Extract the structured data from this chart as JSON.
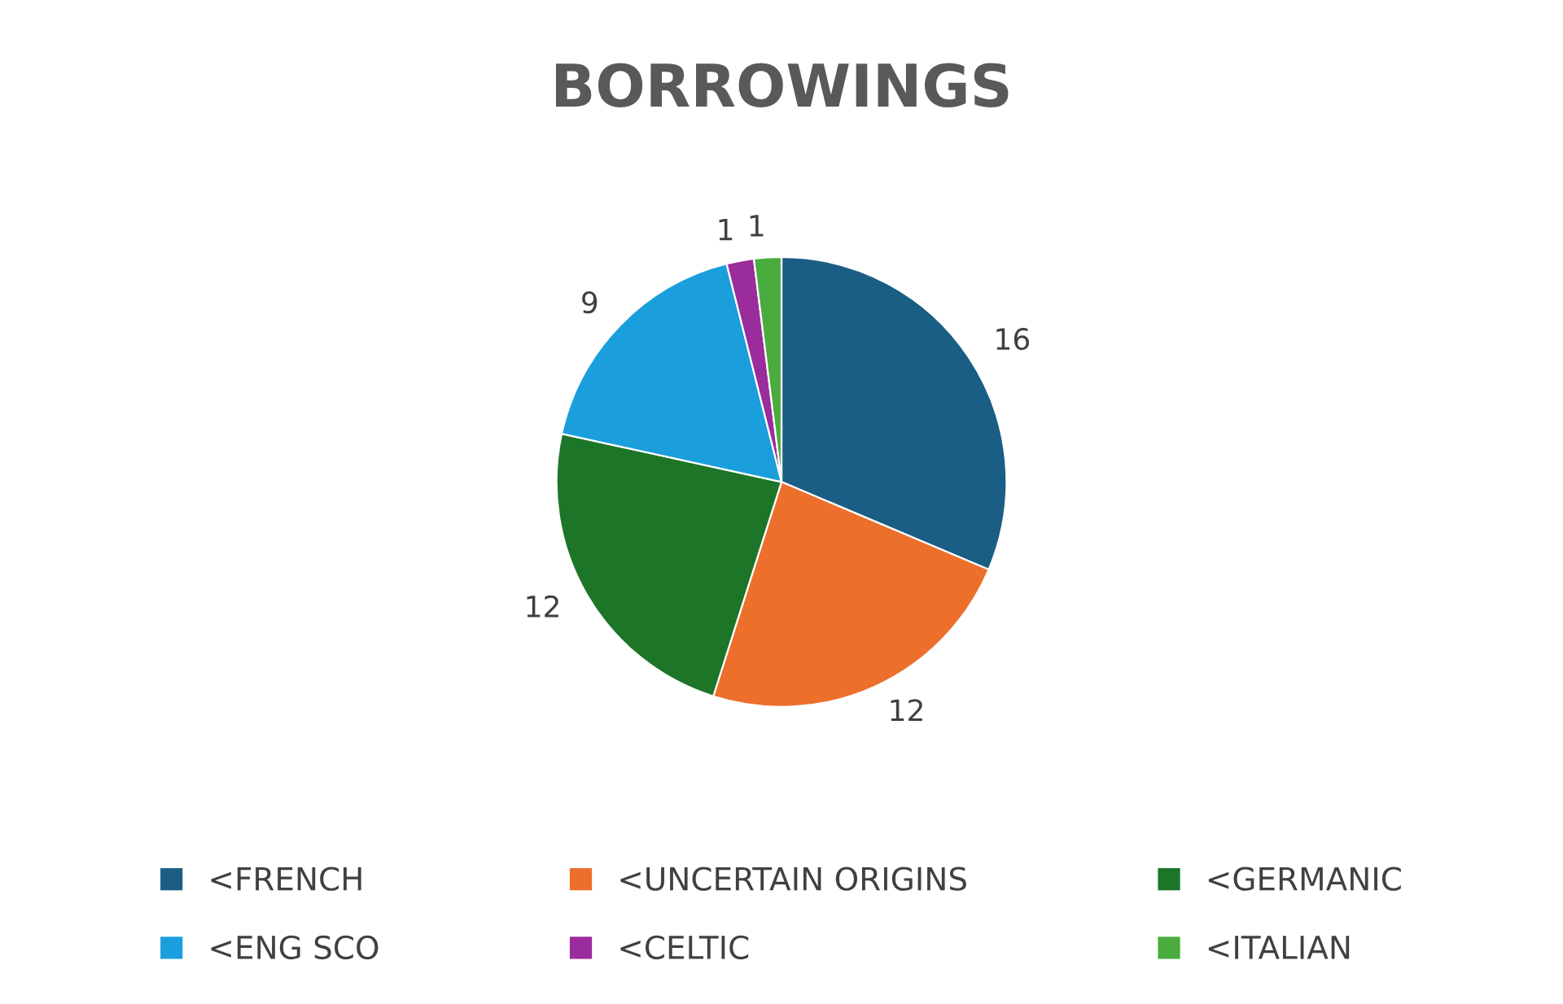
{
  "chart_data": {
    "type": "pie",
    "title": "BORROWINGS",
    "categories": [
      "<FRENCH",
      "<UNCERTAIN ORIGINS",
      "<GERMANIC",
      "<ENG SCO",
      "<CELTIC",
      "<ITALIAN"
    ],
    "values": [
      16,
      12,
      12,
      9,
      1,
      1
    ],
    "colors": [
      "#1b5e85",
      "#ec6f2c",
      "#1d7528",
      "#1a9fdc",
      "#9a2c9c",
      "#4aac3e"
    ],
    "data_labels": true,
    "legend": "bottom"
  }
}
